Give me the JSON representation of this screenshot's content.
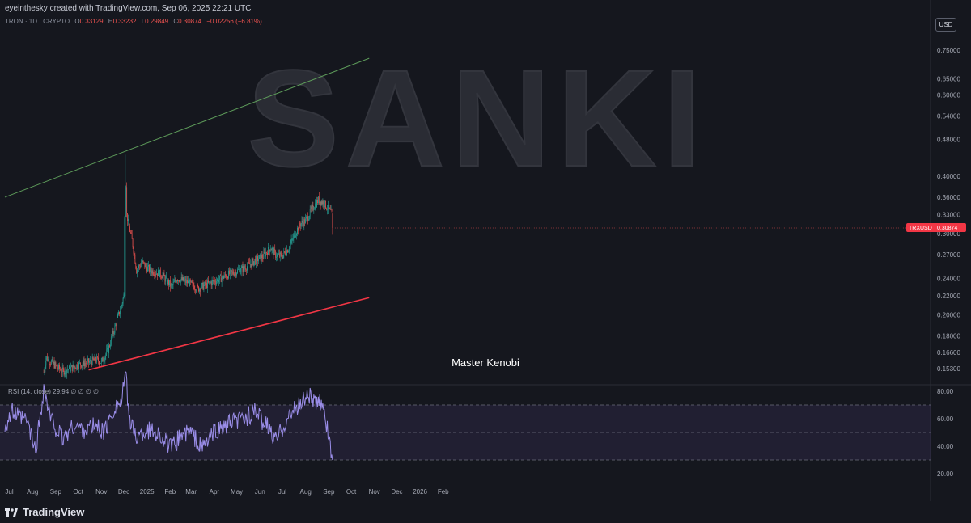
{
  "header": {
    "credit": "eyeinthesky created with TradingView.com, Sep 06, 2025 22:21 UTC"
  },
  "symbol_row": {
    "name": "TRON · 1D · CRYPTO",
    "open_label": "O",
    "open": "0.33129",
    "high_label": "H",
    "high": "0.33232",
    "low_label": "L",
    "low": "0.29849",
    "close_label": "C",
    "close": "0.30874",
    "change": "−0.02256 (−6.81%)"
  },
  "currency_button": "USD",
  "watermark": "SANKI",
  "price_badge": {
    "ticker": "TRXUSD",
    "value": "0.30874",
    "color": "#f23645"
  },
  "rsi_label": "RSI (14, close)  29.94  ∅  ∅  ∅  ∅",
  "footer": {
    "brand": "TradingView"
  },
  "colors": {
    "up": "#26a69a",
    "down": "#ef5350",
    "rsi": "#9a8de8",
    "green_line": "#5d9b5a",
    "red_line": "#f23645"
  },
  "chart_data": [
    {
      "type": "candlestick",
      "scale": "log",
      "y_ticks": [
        "0.75000",
        "0.65000",
        "0.60000",
        "0.54000",
        "0.48000",
        "0.40000",
        "0.36000",
        "0.33000",
        "0.30000",
        "0.27000",
        "0.24000",
        "0.22000",
        "0.20000",
        "0.18000",
        "0.16600",
        "0.15300"
      ],
      "x_ticks": [
        "Jul",
        "Aug",
        "Sep",
        "Oct",
        "Nov",
        "Dec",
        "2025",
        "Feb",
        "Mar",
        "Apr",
        "May",
        "Jun",
        "Jul",
        "Aug",
        "Sep",
        "Oct",
        "Nov",
        "Dec",
        "2026",
        "Feb"
      ],
      "trend_lines": [
        {
          "color": "#5d9b5a",
          "from": [
            "2024-06-25",
            0.36
          ],
          "to": [
            "2025-10-25",
            0.72
          ]
        },
        {
          "color": "#f23645",
          "from": [
            "2024-10-15",
            0.152
          ],
          "to": [
            "2025-10-25",
            0.218
          ]
        }
      ],
      "annotation": "Master Kenobi",
      "waypoints": [
        [
          "2024-08-16",
          0.15
        ],
        [
          "2024-08-19",
          0.162
        ],
        [
          "2024-08-22",
          0.16
        ],
        [
          "2024-09-01",
          0.155
        ],
        [
          "2024-09-10",
          0.151
        ],
        [
          "2024-09-20",
          0.153
        ],
        [
          "2024-10-01",
          0.156
        ],
        [
          "2024-10-15",
          0.158
        ],
        [
          "2024-10-25",
          0.16
        ],
        [
          "2024-11-01",
          0.158
        ],
        [
          "2024-11-10",
          0.168
        ],
        [
          "2024-11-20",
          0.19
        ],
        [
          "2024-11-28",
          0.21
        ],
        [
          "2024-12-01",
          0.22
        ],
        [
          "2024-12-03",
          0.44
        ],
        [
          "2024-12-05",
          0.33
        ],
        [
          "2024-12-08",
          0.31
        ],
        [
          "2024-12-12",
          0.29
        ],
        [
          "2024-12-18",
          0.25
        ],
        [
          "2024-12-25",
          0.26
        ],
        [
          "2025-01-05",
          0.25
        ],
        [
          "2025-01-20",
          0.245
        ],
        [
          "2025-02-03",
          0.23
        ],
        [
          "2025-02-10",
          0.24
        ],
        [
          "2025-02-25",
          0.235
        ],
        [
          "2025-03-10",
          0.228
        ],
        [
          "2025-03-20",
          0.232
        ],
        [
          "2025-04-05",
          0.238
        ],
        [
          "2025-04-20",
          0.245
        ],
        [
          "2025-05-10",
          0.252
        ],
        [
          "2025-05-25",
          0.262
        ],
        [
          "2025-06-05",
          0.268
        ],
        [
          "2025-06-15",
          0.28
        ],
        [
          "2025-06-22",
          0.27
        ],
        [
          "2025-06-30",
          0.268
        ],
        [
          "2025-07-10",
          0.28
        ],
        [
          "2025-07-20",
          0.305
        ],
        [
          "2025-07-25",
          0.315
        ],
        [
          "2025-08-01",
          0.32
        ],
        [
          "2025-08-10",
          0.34
        ],
        [
          "2025-08-18",
          0.355
        ],
        [
          "2025-08-25",
          0.35
        ],
        [
          "2025-09-01",
          0.338
        ],
        [
          "2025-09-05",
          0.331
        ],
        [
          "2025-09-06",
          0.3087
        ]
      ],
      "ohlc_last": {
        "open": 0.33129,
        "high": 0.33232,
        "low": 0.29849,
        "close": 0.30874
      }
    },
    {
      "type": "line",
      "name": "RSI (14, close)",
      "y_ticks": [
        "80.00",
        "60.00",
        "40.00",
        "20.00"
      ],
      "bands": [
        30,
        70
      ],
      "midline": 50,
      "last_value": 29.94,
      "waypoints": [
        [
          "2024-06-25",
          55
        ],
        [
          "2024-07-05",
          65
        ],
        [
          "2024-07-15",
          60
        ],
        [
          "2024-07-25",
          58
        ],
        [
          "2024-08-05",
          36
        ],
        [
          "2024-08-16",
          82
        ],
        [
          "2024-08-25",
          60
        ],
        [
          "2024-09-10",
          45
        ],
        [
          "2024-09-25",
          55
        ],
        [
          "2024-10-10",
          52
        ],
        [
          "2024-10-25",
          55
        ],
        [
          "2024-11-05",
          50
        ],
        [
          "2024-11-20",
          70
        ],
        [
          "2024-11-28",
          72
        ],
        [
          "2024-12-03",
          93
        ],
        [
          "2024-12-10",
          55
        ],
        [
          "2024-12-20",
          46
        ],
        [
          "2025-01-01",
          52
        ],
        [
          "2025-01-15",
          50
        ],
        [
          "2025-02-03",
          38
        ],
        [
          "2025-02-15",
          48
        ],
        [
          "2025-03-01",
          50
        ],
        [
          "2025-03-15",
          38
        ],
        [
          "2025-04-01",
          50
        ],
        [
          "2025-04-20",
          56
        ],
        [
          "2025-05-10",
          60
        ],
        [
          "2025-05-25",
          65
        ],
        [
          "2025-06-10",
          55
        ],
        [
          "2025-06-22",
          44
        ],
        [
          "2025-07-05",
          58
        ],
        [
          "2025-07-20",
          68
        ],
        [
          "2025-08-05",
          78
        ],
        [
          "2025-08-15",
          70
        ],
        [
          "2025-08-25",
          72
        ],
        [
          "2025-09-01",
          45
        ],
        [
          "2025-09-06",
          29.94
        ]
      ]
    }
  ]
}
